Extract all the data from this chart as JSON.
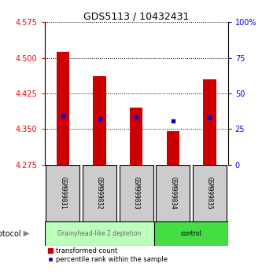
{
  "title": "GDS5113 / 10432431",
  "samples": [
    "GSM999831",
    "GSM999832",
    "GSM999833",
    "GSM999834",
    "GSM999835"
  ],
  "bar_bottom": 4.275,
  "bar_tops": [
    4.512,
    4.462,
    4.395,
    4.345,
    4.455
  ],
  "blue_y": [
    4.378,
    4.373,
    4.375,
    4.368,
    4.374
  ],
  "ylim": [
    4.275,
    4.575
  ],
  "yticks": [
    4.275,
    4.35,
    4.425,
    4.5,
    4.575
  ],
  "right_yticks": [
    0,
    25,
    50,
    75,
    100
  ],
  "right_ytick_labels": [
    "0",
    "25",
    "50",
    "75",
    "100%"
  ],
  "bar_color": "#cc0000",
  "blue_color": "#0000cc",
  "protocol_groups": [
    {
      "label": "Grainyhead-like 2 depletion",
      "indices": [
        0,
        1,
        2
      ],
      "color": "#bbffbb",
      "text_color": "#666666"
    },
    {
      "label": "control",
      "indices": [
        3,
        4
      ],
      "color": "#44dd44",
      "text_color": "#000000"
    }
  ],
  "protocol_label": "protocol",
  "legend_items": [
    {
      "color": "#cc0000",
      "label": "transformed count"
    },
    {
      "color": "#0000cc",
      "label": "percentile rank within the sample"
    }
  ],
  "sample_box_color": "#cccccc",
  "background_color": "#ffffff",
  "title_fontsize": 9,
  "tick_fontsize": 7,
  "bar_width": 0.35
}
